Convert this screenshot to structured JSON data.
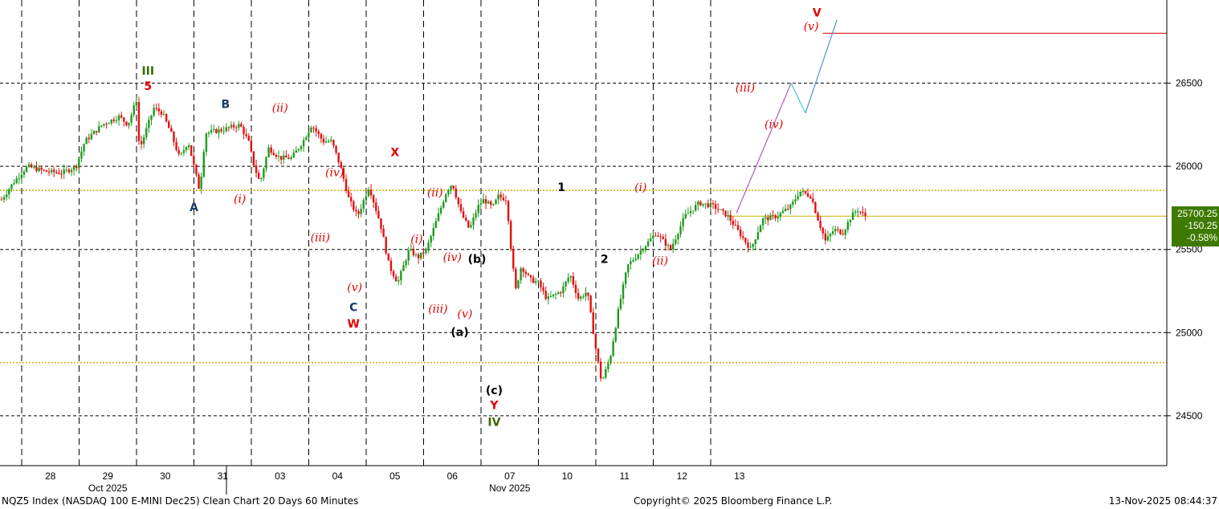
{
  "chart_data": {
    "type": "candlestick",
    "ylim": [
      24200,
      27000
    ],
    "y_ticks": [
      24500,
      25000,
      25500,
      26000,
      26500
    ],
    "x_tick_labels": [
      "28",
      "29",
      "30",
      "31",
      "03",
      "04",
      "05",
      "06",
      "07",
      "10",
      "11",
      "12",
      "13"
    ],
    "x_tick_positions": [
      0.5,
      1.5,
      2.5,
      3.5,
      4.5,
      5.5,
      6.5,
      7.5,
      8.5,
      9.5,
      10.5,
      11.5,
      12.5
    ],
    "month_labels": [
      {
        "text": "Oct 2025",
        "x": 1.5
      },
      {
        "text": "Nov 2025",
        "x": 8.5
      }
    ],
    "grid": "dashed",
    "session_breaks": [
      0,
      1,
      2,
      3,
      4,
      5,
      6,
      7,
      8,
      9,
      10,
      11,
      12
    ],
    "month_separator": 4,
    "reference_lines": [
      {
        "y": 25855,
        "style": "dotted",
        "color": "#d8a800"
      },
      {
        "y": 24820,
        "style": "dotted",
        "color": "#d8a800"
      },
      {
        "y": 26800,
        "style": "solid",
        "color": "#d40000",
        "x_start": 13.95,
        "x_end": 20.5
      },
      {
        "y": 25700.25,
        "style": "solid",
        "color": "#c9b400",
        "x_start": 12.3,
        "x_end": 20.5
      }
    ],
    "price_path": [
      [
        -0.35,
        25800
      ],
      [
        -0.15,
        25900
      ],
      [
        0.1,
        26000
      ],
      [
        0.4,
        25970
      ],
      [
        0.7,
        25960
      ],
      [
        0.95,
        26000
      ],
      [
        1.1,
        26150
      ],
      [
        1.4,
        26250
      ],
      [
        1.7,
        26300
      ],
      [
        1.85,
        26250
      ],
      [
        2.0,
        26400
      ],
      [
        2.05,
        26100
      ],
      [
        2.3,
        26350
      ],
      [
        2.45,
        26320
      ],
      [
        2.6,
        26200
      ],
      [
        2.75,
        26050
      ],
      [
        2.9,
        26150
      ],
      [
        3.1,
        25850
      ],
      [
        3.2,
        26200
      ],
      [
        3.5,
        26220
      ],
      [
        3.8,
        26250
      ],
      [
        3.95,
        26150
      ],
      [
        4.05,
        26000
      ],
      [
        4.15,
        25900
      ],
      [
        4.3,
        26110
      ],
      [
        4.5,
        26050
      ],
      [
        4.7,
        26050
      ],
      [
        4.9,
        26150
      ],
      [
        5.05,
        26250
      ],
      [
        5.25,
        26150
      ],
      [
        5.4,
        26150
      ],
      [
        5.55,
        26000
      ],
      [
        5.7,
        25800
      ],
      [
        5.85,
        25700
      ],
      [
        6.05,
        25880
      ],
      [
        6.25,
        25650
      ],
      [
        6.4,
        25400
      ],
      [
        6.55,
        25300
      ],
      [
        6.75,
        25500
      ],
      [
        6.9,
        25450
      ],
      [
        7.05,
        25500
      ],
      [
        7.25,
        25700
      ],
      [
        7.4,
        25850
      ],
      [
        7.5,
        25900
      ],
      [
        7.65,
        25720
      ],
      [
        7.8,
        25620
      ],
      [
        7.95,
        25760
      ],
      [
        8.05,
        25800
      ],
      [
        8.2,
        25750
      ],
      [
        8.3,
        25820
      ],
      [
        8.45,
        25800
      ],
      [
        8.5,
        25580
      ],
      [
        8.6,
        25250
      ],
      [
        8.7,
        25400
      ],
      [
        8.85,
        25320
      ],
      [
        9.0,
        25300
      ],
      [
        9.15,
        25200
      ],
      [
        9.4,
        25250
      ],
      [
        9.55,
        25350
      ],
      [
        9.7,
        25200
      ],
      [
        9.85,
        25250
      ],
      [
        10.0,
        24900
      ],
      [
        10.1,
        24700
      ],
      [
        10.25,
        24850
      ],
      [
        10.4,
        25150
      ],
      [
        10.55,
        25400
      ],
      [
        10.8,
        25500
      ],
      [
        11.05,
        25600
      ],
      [
        11.3,
        25500
      ],
      [
        11.55,
        25700
      ],
      [
        11.8,
        25780
      ],
      [
        12.05,
        25760
      ],
      [
        12.3,
        25700
      ],
      [
        12.5,
        25600
      ],
      [
        12.7,
        25500
      ],
      [
        12.9,
        25680
      ],
      [
        13.15,
        25700
      ],
      [
        13.4,
        25760
      ],
      [
        13.55,
        25850
      ],
      [
        13.75,
        25820
      ],
      [
        13.85,
        25700
      ],
      [
        14.0,
        25550
      ],
      [
        14.15,
        25620
      ],
      [
        14.3,
        25600
      ],
      [
        14.45,
        25700
      ],
      [
        14.55,
        25740
      ],
      [
        14.7,
        25700
      ]
    ],
    "projections": [
      {
        "color": "#b05cc0",
        "points": [
          [
            12.45,
            25720
          ],
          [
            13.4,
            26500
          ]
        ]
      },
      {
        "color": "#40c8e0",
        "points": [
          [
            13.4,
            26500
          ],
          [
            13.65,
            26320
          ]
        ]
      },
      {
        "color": "#4a90d0",
        "points": [
          [
            13.65,
            26320
          ],
          [
            14.2,
            26880
          ]
        ]
      }
    ],
    "wave_labels": [
      {
        "text": "III",
        "x": 2.2,
        "y": 26550,
        "color": "#3a6a00",
        "style": "bold"
      },
      {
        "text": "5",
        "x": 2.2,
        "y": 26460,
        "color": "#e00000",
        "style": "bold"
      },
      {
        "text": "B",
        "x": 3.55,
        "y": 26350,
        "color": "#1a3a6a",
        "style": "bold"
      },
      {
        "text": "A",
        "x": 3.0,
        "y": 25730,
        "color": "#1a3a6a",
        "style": "bold"
      },
      {
        "text": "(i)",
        "x": 3.8,
        "y": 25780,
        "color": "#e00000",
        "style": "italic"
      },
      {
        "text": "(ii)",
        "x": 4.5,
        "y": 26330,
        "color": "#e00000",
        "style": "italic"
      },
      {
        "text": "(iv)",
        "x": 5.45,
        "y": 25940,
        "color": "#e00000",
        "style": "italic"
      },
      {
        "text": "(iii)",
        "x": 5.2,
        "y": 25550,
        "color": "#e00000",
        "style": "italic"
      },
      {
        "text": "(v)",
        "x": 5.8,
        "y": 25250,
        "color": "#e00000",
        "style": "italic"
      },
      {
        "text": "C",
        "x": 5.78,
        "y": 25130,
        "color": "#1a3a6a",
        "style": "bold"
      },
      {
        "text": "W",
        "x": 5.78,
        "y": 25030,
        "color": "#e00000",
        "style": "bold"
      },
      {
        "text": "X",
        "x": 6.5,
        "y": 26060,
        "color": "#e00000",
        "style": "bold"
      },
      {
        "text": "(ii)",
        "x": 7.2,
        "y": 25820,
        "color": "#e00000",
        "style": "italic"
      },
      {
        "text": "(i)",
        "x": 6.88,
        "y": 25540,
        "color": "#e00000",
        "style": "italic"
      },
      {
        "text": "(iv)",
        "x": 7.5,
        "y": 25430,
        "color": "#e00000",
        "style": "italic"
      },
      {
        "text": "(b)",
        "x": 7.93,
        "y": 25420,
        "color": "#000000",
        "style": "bold"
      },
      {
        "text": "(iii)",
        "x": 7.25,
        "y": 25120,
        "color": "#e00000",
        "style": "italic"
      },
      {
        "text": "(v)",
        "x": 7.72,
        "y": 25090,
        "color": "#e00000",
        "style": "italic"
      },
      {
        "text": "(a)",
        "x": 7.63,
        "y": 24980,
        "color": "#000000",
        "style": "bold"
      },
      {
        "text": "(c)",
        "x": 8.23,
        "y": 24630,
        "color": "#000000",
        "style": "bold"
      },
      {
        "text": "Y",
        "x": 8.23,
        "y": 24540,
        "color": "#e00000",
        "style": "bold"
      },
      {
        "text": "IV",
        "x": 8.23,
        "y": 24440,
        "color": "#3a6a00",
        "style": "bold"
      },
      {
        "text": "1",
        "x": 9.4,
        "y": 25850,
        "color": "#000000",
        "style": "bold"
      },
      {
        "text": "2",
        "x": 10.15,
        "y": 25420,
        "color": "#000000",
        "style": "bold"
      },
      {
        "text": "(i)",
        "x": 10.78,
        "y": 25850,
        "color": "#e00000",
        "style": "italic"
      },
      {
        "text": "(ii)",
        "x": 11.12,
        "y": 25410,
        "color": "#e00000",
        "style": "italic"
      },
      {
        "text": "(iii)",
        "x": 12.6,
        "y": 26450,
        "color": "#e00000",
        "style": "italic"
      },
      {
        "text": "(iv)",
        "x": 13.1,
        "y": 26230,
        "color": "#e00000",
        "style": "italic"
      },
      {
        "text": "V",
        "x": 13.85,
        "y": 26900,
        "color": "#e00000",
        "style": "bold"
      },
      {
        "text": "(v)",
        "x": 13.75,
        "y": 26820,
        "color": "#e00000",
        "style": "italic"
      }
    ]
  },
  "last_price": {
    "value": "25700.25",
    "change": "-150.25",
    "change_pct": "-0.58%"
  },
  "footer": {
    "left": "NQZ5 Index (NASDAQ 100 E-MINI Dec25) Clean Chart 20 Days 60 Minutes",
    "center": "Copyright© 2025 Bloomberg Finance L.P.",
    "right": "13-Nov-2025 08:44:37"
  }
}
